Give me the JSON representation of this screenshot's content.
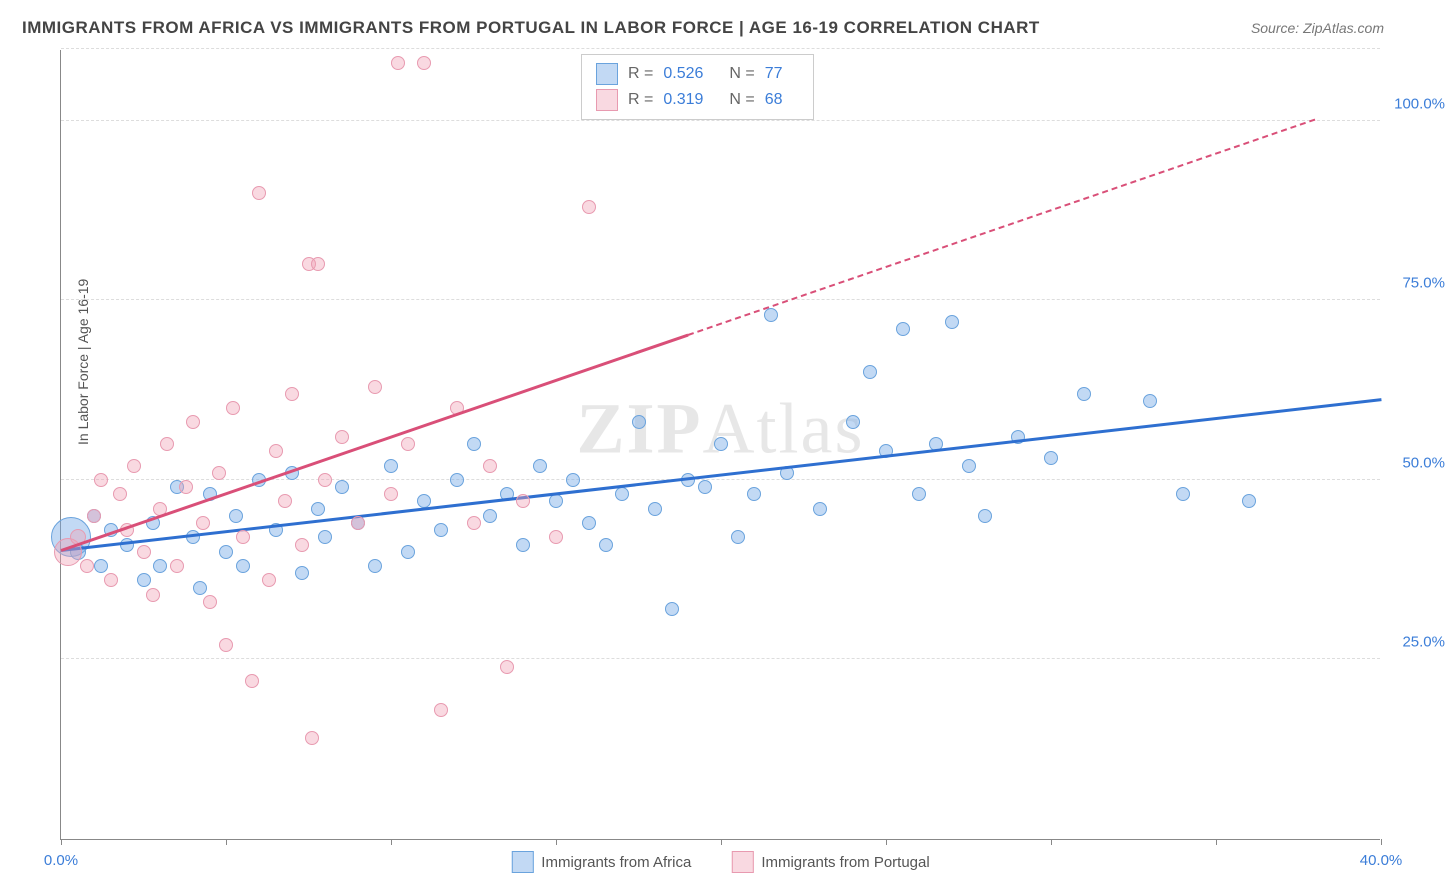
{
  "title": "IMMIGRANTS FROM AFRICA VS IMMIGRANTS FROM PORTUGAL IN LABOR FORCE | AGE 16-19 CORRELATION CHART",
  "source": "Source: ZipAtlas.com",
  "ylabel": "In Labor Force | Age 16-19",
  "watermark_a": "ZIP",
  "watermark_b": "Atlas",
  "chart": {
    "type": "scatter",
    "xlim": [
      0,
      40
    ],
    "ylim": [
      0,
      110
    ],
    "background_color": "#ffffff",
    "grid_color": "#dddddd",
    "xticks": [
      0,
      5,
      10,
      15,
      20,
      25,
      30,
      35,
      40
    ],
    "xtick_labels": {
      "0": "0.0%",
      "40": "40.0%"
    },
    "ygrids": [
      25,
      50,
      75,
      100,
      110
    ],
    "ytick_labels": {
      "25": "25.0%",
      "50": "50.0%",
      "75": "75.0%",
      "100": "100.0%"
    },
    "series": [
      {
        "name": "Immigrants from Africa",
        "color_fill": "rgba(120,170,230,0.45)",
        "color_stroke": "#6aa3dd",
        "trend_color": "#2e6fd0",
        "trend_dash": false,
        "stats": {
          "R": "0.526",
          "N": "77"
        },
        "trend": {
          "x1": 0,
          "y1": 40,
          "x2": 40,
          "y2": 61
        },
        "points": [
          {
            "x": 0.3,
            "y": 42,
            "r": 20
          },
          {
            "x": 0.5,
            "y": 40,
            "r": 8
          },
          {
            "x": 1,
            "y": 45,
            "r": 7
          },
          {
            "x": 1.2,
            "y": 38,
            "r": 7
          },
          {
            "x": 1.5,
            "y": 43,
            "r": 7
          },
          {
            "x": 2,
            "y": 41,
            "r": 7
          },
          {
            "x": 2.5,
            "y": 36,
            "r": 7
          },
          {
            "x": 2.8,
            "y": 44,
            "r": 7
          },
          {
            "x": 3,
            "y": 38,
            "r": 7
          },
          {
            "x": 3.5,
            "y": 49,
            "r": 7
          },
          {
            "x": 4,
            "y": 42,
            "r": 7
          },
          {
            "x": 4.2,
            "y": 35,
            "r": 7
          },
          {
            "x": 4.5,
            "y": 48,
            "r": 7
          },
          {
            "x": 5,
            "y": 40,
            "r": 7
          },
          {
            "x": 5.3,
            "y": 45,
            "r": 7
          },
          {
            "x": 5.5,
            "y": 38,
            "r": 7
          },
          {
            "x": 6,
            "y": 50,
            "r": 7
          },
          {
            "x": 6.5,
            "y": 43,
            "r": 7
          },
          {
            "x": 7,
            "y": 51,
            "r": 7
          },
          {
            "x": 7.3,
            "y": 37,
            "r": 7
          },
          {
            "x": 7.8,
            "y": 46,
            "r": 7
          },
          {
            "x": 8,
            "y": 42,
            "r": 7
          },
          {
            "x": 8.5,
            "y": 49,
            "r": 7
          },
          {
            "x": 9,
            "y": 44,
            "r": 7
          },
          {
            "x": 9.5,
            "y": 38,
            "r": 7
          },
          {
            "x": 10,
            "y": 52,
            "r": 7
          },
          {
            "x": 10.5,
            "y": 40,
            "r": 7
          },
          {
            "x": 11,
            "y": 47,
            "r": 7
          },
          {
            "x": 11.5,
            "y": 43,
            "r": 7
          },
          {
            "x": 12,
            "y": 50,
            "r": 7
          },
          {
            "x": 12.5,
            "y": 55,
            "r": 7
          },
          {
            "x": 13,
            "y": 45,
            "r": 7
          },
          {
            "x": 13.5,
            "y": 48,
            "r": 7
          },
          {
            "x": 14,
            "y": 41,
            "r": 7
          },
          {
            "x": 14.5,
            "y": 52,
            "r": 7
          },
          {
            "x": 15,
            "y": 47,
            "r": 7
          },
          {
            "x": 15.5,
            "y": 50,
            "r": 7
          },
          {
            "x": 16,
            "y": 44,
            "r": 7
          },
          {
            "x": 16.5,
            "y": 41,
            "r": 7
          },
          {
            "x": 17,
            "y": 48,
            "r": 7
          },
          {
            "x": 17.5,
            "y": 58,
            "r": 7
          },
          {
            "x": 18,
            "y": 46,
            "r": 7
          },
          {
            "x": 18.5,
            "y": 32,
            "r": 7
          },
          {
            "x": 19,
            "y": 50,
            "r": 7
          },
          {
            "x": 19.5,
            "y": 49,
            "r": 7
          },
          {
            "x": 20,
            "y": 55,
            "r": 7
          },
          {
            "x": 20.5,
            "y": 42,
            "r": 7
          },
          {
            "x": 21,
            "y": 48,
            "r": 7
          },
          {
            "x": 21.5,
            "y": 73,
            "r": 7
          },
          {
            "x": 22,
            "y": 51,
            "r": 7
          },
          {
            "x": 23,
            "y": 46,
            "r": 7
          },
          {
            "x": 24,
            "y": 58,
            "r": 7
          },
          {
            "x": 24.5,
            "y": 65,
            "r": 7
          },
          {
            "x": 25,
            "y": 54,
            "r": 7
          },
          {
            "x": 25.5,
            "y": 71,
            "r": 7
          },
          {
            "x": 26,
            "y": 48,
            "r": 7
          },
          {
            "x": 26.5,
            "y": 55,
            "r": 7
          },
          {
            "x": 27,
            "y": 72,
            "r": 7
          },
          {
            "x": 27.5,
            "y": 52,
            "r": 7
          },
          {
            "x": 28,
            "y": 45,
            "r": 7
          },
          {
            "x": 29,
            "y": 56,
            "r": 7
          },
          {
            "x": 30,
            "y": 53,
            "r": 7
          },
          {
            "x": 31,
            "y": 62,
            "r": 7
          },
          {
            "x": 33,
            "y": 61,
            "r": 7
          },
          {
            "x": 34,
            "y": 48,
            "r": 7
          },
          {
            "x": 36,
            "y": 47,
            "r": 7
          }
        ]
      },
      {
        "name": "Immigrants from Portugal",
        "color_fill": "rgba(240,160,180,0.40)",
        "color_stroke": "#e89ab0",
        "trend_color": "#d94f78",
        "trend_dash": true,
        "stats": {
          "R": "0.319",
          "N": "68"
        },
        "trend_solid": {
          "x1": 0,
          "y1": 40,
          "x2": 19,
          "y2": 70
        },
        "trend_dashed": {
          "x1": 19,
          "y1": 70,
          "x2": 38,
          "y2": 100
        },
        "points": [
          {
            "x": 0.2,
            "y": 40,
            "r": 14
          },
          {
            "x": 0.5,
            "y": 42,
            "r": 8
          },
          {
            "x": 0.8,
            "y": 38,
            "r": 7
          },
          {
            "x": 1,
            "y": 45,
            "r": 7
          },
          {
            "x": 1.2,
            "y": 50,
            "r": 7
          },
          {
            "x": 1.5,
            "y": 36,
            "r": 7
          },
          {
            "x": 1.8,
            "y": 48,
            "r": 7
          },
          {
            "x": 2,
            "y": 43,
            "r": 7
          },
          {
            "x": 2.2,
            "y": 52,
            "r": 7
          },
          {
            "x": 2.5,
            "y": 40,
            "r": 7
          },
          {
            "x": 2.8,
            "y": 34,
            "r": 7
          },
          {
            "x": 3,
            "y": 46,
            "r": 7
          },
          {
            "x": 3.2,
            "y": 55,
            "r": 7
          },
          {
            "x": 3.5,
            "y": 38,
            "r": 7
          },
          {
            "x": 3.8,
            "y": 49,
            "r": 7
          },
          {
            "x": 4,
            "y": 58,
            "r": 7
          },
          {
            "x": 4.3,
            "y": 44,
            "r": 7
          },
          {
            "x": 4.5,
            "y": 33,
            "r": 7
          },
          {
            "x": 4.8,
            "y": 51,
            "r": 7
          },
          {
            "x": 5,
            "y": 27,
            "r": 7
          },
          {
            "x": 5.2,
            "y": 60,
            "r": 7
          },
          {
            "x": 5.5,
            "y": 42,
            "r": 7
          },
          {
            "x": 5.8,
            "y": 22,
            "r": 7
          },
          {
            "x": 6,
            "y": 90,
            "r": 7
          },
          {
            "x": 6.3,
            "y": 36,
            "r": 7
          },
          {
            "x": 6.5,
            "y": 54,
            "r": 7
          },
          {
            "x": 6.8,
            "y": 47,
            "r": 7
          },
          {
            "x": 7,
            "y": 62,
            "r": 7
          },
          {
            "x": 7.3,
            "y": 41,
            "r": 7
          },
          {
            "x": 7.5,
            "y": 80,
            "r": 7
          },
          {
            "x": 7.6,
            "y": 14,
            "r": 7
          },
          {
            "x": 7.8,
            "y": 80,
            "r": 7
          },
          {
            "x": 8,
            "y": 50,
            "r": 7
          },
          {
            "x": 8.5,
            "y": 56,
            "r": 7
          },
          {
            "x": 9,
            "y": 44,
            "r": 7
          },
          {
            "x": 9.5,
            "y": 63,
            "r": 7
          },
          {
            "x": 10,
            "y": 48,
            "r": 7
          },
          {
            "x": 10.2,
            "y": 108,
            "r": 7
          },
          {
            "x": 10.5,
            "y": 55,
            "r": 7
          },
          {
            "x": 11,
            "y": 108,
            "r": 7
          },
          {
            "x": 11.5,
            "y": 18,
            "r": 7
          },
          {
            "x": 12,
            "y": 60,
            "r": 7
          },
          {
            "x": 12.5,
            "y": 44,
            "r": 7
          },
          {
            "x": 13,
            "y": 52,
            "r": 7
          },
          {
            "x": 13.5,
            "y": 24,
            "r": 7
          },
          {
            "x": 14,
            "y": 47,
            "r": 7
          },
          {
            "x": 15,
            "y": 42,
            "r": 7
          },
          {
            "x": 16,
            "y": 88,
            "r": 7
          }
        ]
      }
    ]
  }
}
